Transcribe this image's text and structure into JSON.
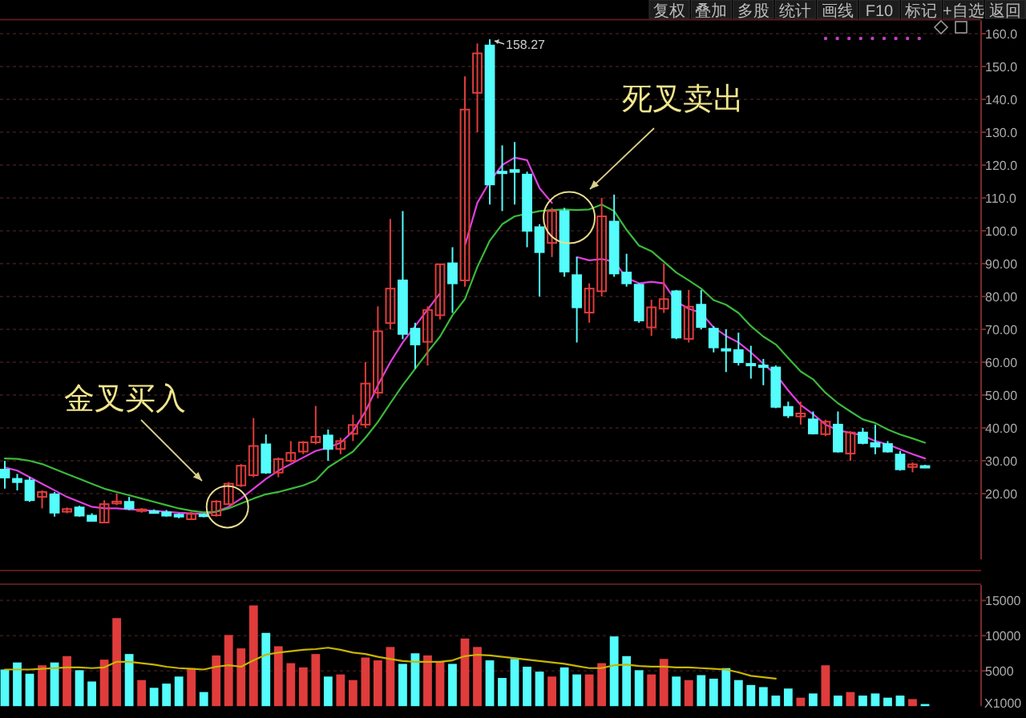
{
  "chart_data": [
    {
      "type": "candlestick",
      "categories": [
        null,
        null,
        null,
        null,
        null,
        null,
        null,
        null,
        null,
        null,
        null,
        null,
        null,
        null,
        null,
        null,
        null,
        null,
        null,
        null,
        null,
        null,
        null,
        null,
        null,
        null,
        null,
        null,
        null,
        null,
        null,
        null,
        null,
        null,
        null,
        null,
        null,
        null,
        null,
        null,
        null,
        null,
        null,
        null,
        null,
        null,
        null,
        null,
        null,
        null,
        null,
        null,
        null,
        null,
        null,
        null,
        null,
        null,
        null,
        null,
        null,
        null,
        null,
        null,
        null,
        null,
        null,
        null,
        null,
        null,
        null,
        null,
        null,
        null,
        null
      ],
      "ohlc": [
        [
          27.3,
          30,
          21.5,
          24.9
        ],
        [
          24.5,
          26,
          21,
          23.5
        ],
        [
          24,
          25,
          17.5,
          18
        ],
        [
          19,
          21,
          15.5,
          20.5
        ],
        [
          19.8,
          20.5,
          13,
          14.2
        ],
        [
          14.5,
          15.8,
          14,
          15.3
        ],
        [
          15.8,
          16.3,
          13,
          13.3
        ],
        [
          13.3,
          14,
          11.5,
          11.7
        ],
        [
          11.2,
          18,
          11,
          16.8
        ],
        [
          17,
          20,
          16.5,
          17.6
        ],
        [
          17.5,
          19,
          15,
          15.5
        ],
        [
          14.7,
          15.6,
          14.2,
          15.2
        ],
        [
          14.6,
          15.2,
          14,
          14.4
        ],
        [
          14.3,
          15,
          13,
          13.3
        ],
        [
          13.6,
          14,
          12.5,
          13
        ],
        [
          12.2,
          14.5,
          12,
          13.8
        ],
        [
          13.6,
          14,
          12.8,
          13.2
        ],
        [
          13.4,
          18,
          13,
          17.6
        ],
        [
          16.8,
          23.5,
          16.5,
          23
        ],
        [
          22.5,
          29,
          22,
          28.5
        ],
        [
          25.6,
          43,
          25,
          34.5
        ],
        [
          35,
          38,
          26,
          26.4
        ],
        [
          26.4,
          31,
          25,
          30.5
        ],
        [
          30,
          36,
          29.5,
          32.4
        ],
        [
          32.8,
          36,
          32,
          35.6
        ],
        [
          35.6,
          46.7,
          35,
          37.3
        ],
        [
          37.7,
          39.5,
          30,
          33.6
        ],
        [
          33.6,
          37,
          32,
          36
        ],
        [
          38.2,
          44,
          36,
          40.9
        ],
        [
          41,
          60,
          40,
          53.5
        ],
        [
          50.7,
          77,
          49,
          69.4
        ],
        [
          71.9,
          103.6,
          70,
          82.4
        ],
        [
          84.9,
          106,
          67,
          68.6
        ],
        [
          70.2,
          72,
          58,
          65.4
        ],
        [
          66.2,
          77,
          59,
          75.9
        ],
        [
          74.3,
          90,
          73,
          89.8
        ],
        [
          90.1,
          95,
          75,
          84
        ],
        [
          84.9,
          147,
          83,
          136.9
        ],
        [
          142,
          157,
          130,
          154
        ],
        [
          156.4,
          158.27,
          108,
          114.1
        ],
        [
          118,
          126,
          106,
          117.9
        ],
        [
          118.5,
          127,
          108,
          117.9
        ],
        [
          117.1,
          118,
          95,
          100
        ],
        [
          101.1,
          102,
          80,
          93.5
        ],
        [
          96.3,
          107,
          92,
          106
        ],
        [
          106,
          107,
          86,
          87.6
        ],
        [
          86.5,
          92,
          66,
          76.7
        ],
        [
          75.1,
          84,
          72,
          82.4
        ],
        [
          81.6,
          110,
          80,
          104.4
        ],
        [
          102.8,
          111,
          86,
          87
        ],
        [
          87.3,
          93,
          83,
          84
        ],
        [
          83.6,
          84,
          72,
          72.7
        ],
        [
          70.6,
          79,
          68,
          76.7
        ],
        [
          76.3,
          90,
          75,
          79.2
        ],
        [
          81.6,
          82,
          67,
          67.5
        ],
        [
          67.1,
          82,
          66,
          76.9
        ],
        [
          77.5,
          82,
          70,
          70.7
        ],
        [
          70.2,
          71,
          63,
          64.5
        ],
        [
          64,
          70,
          57,
          63.7
        ],
        [
          63.7,
          69,
          59,
          60
        ],
        [
          59.5,
          65,
          55,
          59.3
        ],
        [
          59,
          61,
          53,
          58.9
        ],
        [
          58.4,
          59,
          46,
          46.4
        ],
        [
          46.4,
          48,
          43,
          43.8
        ],
        [
          43.5,
          48,
          41,
          44.4
        ],
        [
          42.6,
          45,
          38,
          38.3
        ],
        [
          38.1,
          42.5,
          37.5,
          41.9
        ],
        [
          41,
          45,
          32.5,
          32.8
        ],
        [
          32.2,
          39,
          30,
          38.6
        ],
        [
          38.6,
          40,
          35,
          35.4
        ],
        [
          35.4,
          41,
          32,
          34.3
        ],
        [
          35.1,
          36,
          32.5,
          32.8
        ],
        [
          31.9,
          33,
          27,
          27.4
        ],
        [
          28.1,
          29.5,
          26.5,
          28.9
        ],
        [
          28.4,
          28.8,
          28,
          28.4
        ]
      ],
      "colors": [
        "#54fcfc",
        "#54fcfc",
        "#54fcfc",
        "#e03c3c",
        "#54fcfc",
        "#e03c3c",
        "#54fcfc",
        "#54fcfc",
        "#e03c3c",
        "#e03c3c",
        "#54fcfc",
        "#e03c3c",
        "#54fcfc",
        "#54fcfc",
        "#54fcfc",
        "#e03c3c",
        "#54fcfc",
        "#e03c3c",
        "#e03c3c",
        "#e03c3c",
        "#e03c3c",
        "#54fcfc",
        "#e03c3c",
        "#e03c3c",
        "#e03c3c",
        "#e03c3c",
        "#54fcfc",
        "#e03c3c",
        "#e03c3c",
        "#e03c3c",
        "#e03c3c",
        "#e03c3c",
        "#54fcfc",
        "#54fcfc",
        "#e03c3c",
        "#e03c3c",
        "#54fcfc",
        "#e03c3c",
        "#e03c3c",
        "#54fcfc",
        "#54fcfc",
        "#54fcfc",
        "#54fcfc",
        "#54fcfc",
        "#e03c3c",
        "#54fcfc",
        "#54fcfc",
        "#e03c3c",
        "#e03c3c",
        "#54fcfc",
        "#54fcfc",
        "#54fcfc",
        "#e03c3c",
        "#e03c3c",
        "#54fcfc",
        "#e03c3c",
        "#54fcfc",
        "#54fcfc",
        "#54fcfc",
        "#54fcfc",
        "#54fcfc",
        "#54fcfc",
        "#54fcfc",
        "#54fcfc",
        "#e03c3c",
        "#54fcfc",
        "#e03c3c",
        "#54fcfc",
        "#e03c3c",
        "#54fcfc",
        "#54fcfc",
        "#54fcfc",
        "#54fcfc",
        "#e03c3c",
        "#54fcfc"
      ],
      "series": [
        {
          "type": "line",
          "color": "#e040e0",
          "values": [
            28,
            27,
            25,
            23,
            21,
            19,
            17.5,
            16,
            15.5,
            15.5,
            15.2,
            15,
            14.8,
            14.5,
            14.2,
            14,
            13.8,
            14.5,
            16,
            18.5,
            21.5,
            24.5,
            27,
            29,
            31,
            33,
            34,
            35.5,
            39,
            45,
            53,
            60,
            66,
            71,
            76,
            81,
            null,
            95.5,
            108.5,
            115,
            120,
            122.3,
            121.5,
            113,
            108.5,
            null,
            92,
            91,
            91.4,
            90.6,
            85.7,
            84,
            84.5,
            84,
            78.4,
            76.3,
            75,
            70.6,
            68,
            66,
            63,
            59.5,
            56.3,
            51.4,
            47,
            44.2,
            41,
            39.3,
            38.5,
            37.7,
            36,
            35,
            33.5,
            32,
            30.7
          ]
        },
        {
          "type": "line",
          "color": "#3cb83c",
          "values": [
            30.7,
            30.6,
            30,
            29,
            27.5,
            26,
            24.5,
            23,
            21.5,
            20.5,
            19.5,
            18.5,
            17.5,
            16.5,
            15.5,
            14.8,
            14.3,
            14.5,
            15.5,
            17,
            18.5,
            19.8,
            20.5,
            21.5,
            22.5,
            24,
            28,
            30.4,
            32.8,
            37,
            41.8,
            47.5,
            53,
            58,
            63,
            67.8,
            74.3,
            79.2,
            89,
            97,
            102,
            104.4,
            105.2,
            106,
            106.3,
            106.5,
            106.3,
            106.5,
            108,
            106,
            100.3,
            95.5,
            93.8,
            90.6,
            87.3,
            84.9,
            82.4,
            78.9,
            77.5,
            75,
            71,
            67.8,
            65.4,
            61.3,
            57.2,
            54.8,
            50.7,
            47.5,
            45,
            42.6,
            41.5,
            39.5,
            38,
            36.8,
            35.5
          ]
        }
      ],
      "ylim": [
        0,
        164
      ],
      "yticks": [
        {
          "value": 160,
          "label": "160.0"
        },
        {
          "value": 150,
          "label": "150.0"
        },
        {
          "value": 140,
          "label": "140.0"
        },
        {
          "value": 130,
          "label": "130.0"
        },
        {
          "value": 120,
          "label": "120.0"
        },
        {
          "value": 110,
          "label": "110.0"
        },
        {
          "value": 100,
          "label": "100.0"
        },
        {
          "value": 90,
          "label": "90.00"
        },
        {
          "value": 80,
          "label": "80.00"
        },
        {
          "value": 70,
          "label": "70.00"
        },
        {
          "value": 60,
          "label": "60.00"
        },
        {
          "value": 50,
          "label": "50.00"
        },
        {
          "value": 40,
          "label": "40.00"
        },
        {
          "value": 30,
          "label": "30.00"
        },
        {
          "value": 20,
          "label": "20.00"
        }
      ],
      "grid": "y",
      "tick_labels": "y",
      "annotations": [
        "金叉买入",
        "死叉卖出",
        "158.27",
        "复权",
        "叠加",
        "多股",
        "统计",
        "画线",
        "F10",
        "标记",
        "+自选",
        "返回"
      ]
    },
    {
      "type": "bar",
      "categories": [
        null,
        null,
        null,
        null,
        null,
        null,
        null,
        null,
        null,
        null,
        null,
        null,
        null,
        null,
        null,
        null,
        null,
        null,
        null,
        null,
        null,
        null,
        null,
        null,
        null,
        null,
        null,
        null,
        null,
        null,
        null,
        null,
        null,
        null,
        null,
        null,
        null,
        null,
        null,
        null,
        null,
        null,
        null,
        null,
        null,
        null,
        null,
        null,
        null,
        null,
        null,
        null,
        null,
        null,
        null,
        null,
        null,
        null,
        null,
        null,
        null,
        null,
        null,
        null,
        null,
        null,
        null,
        null,
        null,
        null,
        null,
        null,
        null,
        null,
        null
      ],
      "series": [
        {
          "type": "bar",
          "values": [
            5200,
            6200,
            4600,
            5800,
            6200,
            7100,
            5100,
            3500,
            6600,
            12500,
            7400,
            3700,
            2600,
            3200,
            4200,
            5400,
            2000,
            7200,
            10100,
            8200,
            14300,
            10400,
            8500,
            6100,
            5500,
            7400,
            4200,
            4500,
            3700,
            6900,
            6500,
            8400,
            6000,
            7500,
            7200,
            6300,
            6000,
            9600,
            8400,
            6500,
            4000,
            6700,
            5600,
            4900,
            4200,
            5500,
            4500,
            4500,
            6100,
            9900,
            7100,
            5100,
            4500,
            6700,
            4200,
            3700,
            4400,
            3900,
            5400,
            3700,
            3000,
            2700,
            1500,
            2500,
            1200,
            1800,
            5800,
            1500,
            2000,
            1500,
            1800,
            1200,
            1500,
            1000,
            300
          ],
          "colors": [
            "#54fcfc",
            "#54fcfc",
            "#54fcfc",
            "#e03c3c",
            "#54fcfc",
            "#e03c3c",
            "#54fcfc",
            "#54fcfc",
            "#e03c3c",
            "#e03c3c",
            "#54fcfc",
            "#e03c3c",
            "#54fcfc",
            "#54fcfc",
            "#54fcfc",
            "#e03c3c",
            "#54fcfc",
            "#e03c3c",
            "#e03c3c",
            "#e03c3c",
            "#e03c3c",
            "#54fcfc",
            "#e03c3c",
            "#e03c3c",
            "#e03c3c",
            "#e03c3c",
            "#54fcfc",
            "#e03c3c",
            "#e03c3c",
            "#e03c3c",
            "#e03c3c",
            "#e03c3c",
            "#54fcfc",
            "#54fcfc",
            "#e03c3c",
            "#e03c3c",
            "#54fcfc",
            "#e03c3c",
            "#e03c3c",
            "#54fcfc",
            "#54fcfc",
            "#54fcfc",
            "#54fcfc",
            "#54fcfc",
            "#e03c3c",
            "#54fcfc",
            "#54fcfc",
            "#e03c3c",
            "#e03c3c",
            "#54fcfc",
            "#54fcfc",
            "#54fcfc",
            "#e03c3c",
            "#e03c3c",
            "#54fcfc",
            "#e03c3c",
            "#54fcfc",
            "#54fcfc",
            "#54fcfc",
            "#54fcfc",
            "#54fcfc",
            "#54fcfc",
            "#54fcfc",
            "#54fcfc",
            "#e03c3c",
            "#54fcfc",
            "#e03c3c",
            "#54fcfc",
            "#e03c3c",
            "#54fcfc",
            "#54fcfc",
            "#54fcfc",
            "#54fcfc",
            "#e03c3c",
            "#54fcfc"
          ]
        },
        {
          "type": "line",
          "color": "#c8b400",
          "values": [
            5200,
            5200,
            5200,
            5300,
            5400,
            5500,
            5500,
            5400,
            5500,
            6300,
            6300,
            6100,
            5900,
            5600,
            5400,
            5300,
            5200,
            5600,
            5800,
            5600,
            6500,
            7300,
            7600,
            7800,
            8000,
            8100,
            8300,
            8000,
            7600,
            7400,
            7000,
            6700,
            6400,
            6300,
            6300,
            6300,
            6500,
            7100,
            7300,
            7200,
            7000,
            6800,
            6600,
            6400,
            6200,
            6000,
            5700,
            5400,
            5400,
            5800,
            5900,
            5700,
            5600,
            5600,
            5500,
            5500,
            5400,
            5300,
            5200,
            4800,
            4300,
            4100,
            3900,
            null,
            null,
            null,
            null,
            null,
            null,
            null,
            null,
            null,
            null,
            null,
            null
          ]
        }
      ],
      "ylim": [
        0,
        17200
      ],
      "yticks": [
        15000,
        10000,
        5000
      ],
      "grid": "y",
      "tick_labels": "y",
      "annotations": [
        "X1000"
      ]
    }
  ]
}
